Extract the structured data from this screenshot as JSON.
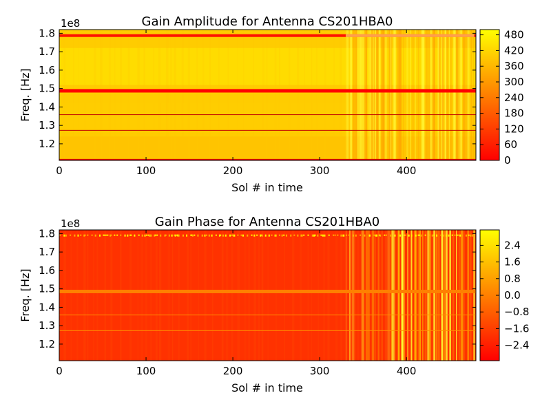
{
  "chart_data": [
    {
      "type": "heatmap",
      "title": "Gain Amplitude for Antenna CS201HBA0",
      "xlabel": "Sol # in time",
      "ylabel": "Freq. [Hz]",
      "y_offset_label": "1e8",
      "xlim": [
        0,
        480
      ],
      "ylim": [
        1.11,
        1.82
      ],
      "x_ticks": [
        0,
        100,
        200,
        300,
        400
      ],
      "x_tick_labels": [
        "0",
        "100",
        "200",
        "300",
        "400"
      ],
      "y_ticks": [
        1.2,
        1.3,
        1.4,
        1.5,
        1.6,
        1.7,
        1.8
      ],
      "y_tick_labels": [
        "1.2",
        "1.3",
        "1.4",
        "1.5",
        "1.6",
        "1.7",
        "1.8"
      ],
      "colorbar_range": [
        0,
        500
      ],
      "colorbar_ticks": [
        0,
        60,
        120,
        180,
        240,
        300,
        360,
        420,
        480
      ],
      "colorbar_tick_labels": [
        "0",
        "60",
        "120",
        "180",
        "240",
        "300",
        "360",
        "420",
        "480"
      ],
      "colormap": "autumn",
      "colors": [
        "#ff0000",
        "#ffff00"
      ],
      "dominant_value": 400,
      "low_value_bands_freq": [
        1.11,
        1.27,
        1.355,
        1.49,
        1.79
      ]
    },
    {
      "type": "heatmap",
      "title": "Gain Phase for Antenna CS201HBA0",
      "xlabel": "Sol # in time",
      "ylabel": "Freq. [Hz]",
      "y_offset_label": "1e8",
      "xlim": [
        0,
        480
      ],
      "ylim": [
        1.11,
        1.82
      ],
      "x_ticks": [
        0,
        100,
        200,
        300,
        400
      ],
      "x_tick_labels": [
        "0",
        "100",
        "200",
        "300",
        "400"
      ],
      "y_ticks": [
        1.2,
        1.3,
        1.4,
        1.5,
        1.6,
        1.7,
        1.8
      ],
      "y_tick_labels": [
        "1.2",
        "1.3",
        "1.4",
        "1.5",
        "1.6",
        "1.7",
        "1.8"
      ],
      "colorbar_range": [
        -3.14,
        3.14
      ],
      "colorbar_ticks": [
        -2.4,
        -1.6,
        -0.8,
        0.0,
        0.8,
        1.6,
        2.4
      ],
      "colorbar_tick_labels": [
        "−2.4",
        "−1.6",
        "−0.8",
        "0.0",
        "0.8",
        "1.6",
        "2.4"
      ],
      "colormap": "autumn",
      "colors": [
        "#ff0000",
        "#ffff00"
      ],
      "dominant_value": -2.0,
      "band_freqs": [
        1.27,
        1.355,
        1.49,
        1.79
      ]
    }
  ]
}
